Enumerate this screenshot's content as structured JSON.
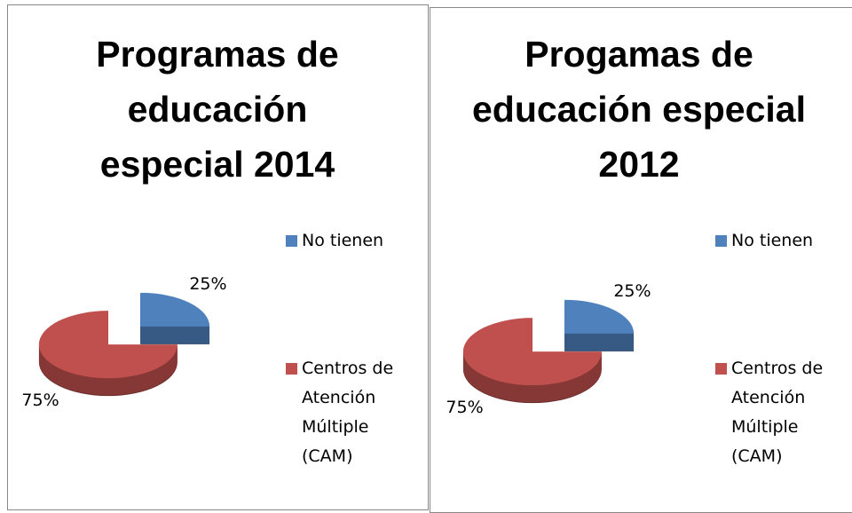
{
  "chart_data": [
    {
      "type": "pie",
      "title": "Programas de educación especial 2014",
      "categories": [
        "No tienen",
        "Centros de Atención Múltiple (CAM)"
      ],
      "values": [
        25,
        75
      ],
      "value_labels": [
        "25%",
        "75%"
      ],
      "colors": [
        "#4f81bd",
        "#c0504d"
      ],
      "legend": "right"
    },
    {
      "type": "pie",
      "title": "Progamas de educación especial 2012",
      "categories": [
        "No tienen",
        "Centros de Atención Múltiple (CAM)"
      ],
      "values": [
        25,
        75
      ],
      "value_labels": [
        "25%",
        "75%"
      ],
      "colors": [
        "#4f81bd",
        "#c0504d"
      ],
      "legend": "right"
    }
  ]
}
